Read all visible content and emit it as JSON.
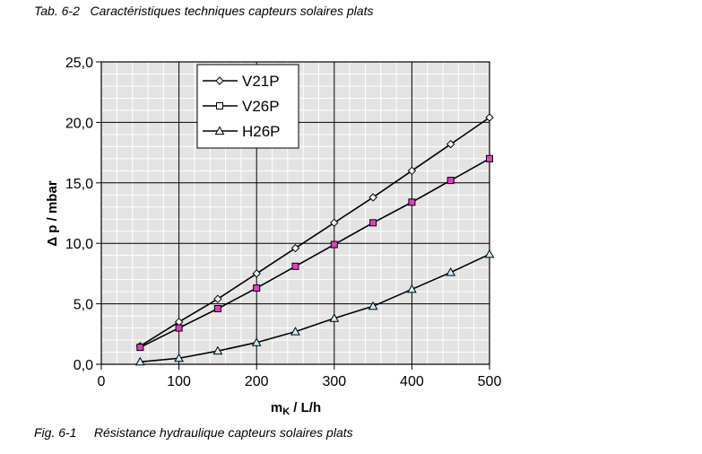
{
  "captions": {
    "table": "Tab. 6-2   Caractéristiques techniques capteurs solaires plats",
    "figure": "Fig. 6-1     Résistance hydraulique capteurs solaires plats"
  },
  "chart_data": {
    "type": "line",
    "title": "",
    "xlabel": "mK / L/h",
    "xlabel_main": "m",
    "xlabel_sub": "K",
    "xlabel_unit": " / L/h",
    "ylabel": "Δ p / mbar",
    "xlim": [
      0,
      500
    ],
    "ylim": [
      0,
      25
    ],
    "x_ticks": [
      0,
      100,
      200,
      300,
      400,
      500
    ],
    "x_tick_labels": [
      "0",
      "100",
      "200",
      "300",
      "400",
      "500"
    ],
    "y_ticks": [
      0,
      5,
      10,
      15,
      20,
      25
    ],
    "y_tick_labels": [
      "0,0",
      "5,0",
      "10,0",
      "15,0",
      "20,0",
      "25,0"
    ],
    "grid": true,
    "legend_position": "top-left",
    "series": [
      {
        "name": "V21P",
        "marker": "diamond",
        "marker_fill": "#ffffff",
        "x": [
          50,
          100,
          150,
          200,
          250,
          300,
          350,
          400,
          450,
          500
        ],
        "values": [
          1.5,
          3.5,
          5.4,
          7.5,
          9.6,
          11.7,
          13.8,
          16.0,
          18.2,
          20.4
        ]
      },
      {
        "name": "V26P",
        "marker": "square",
        "marker_fill": "#e040c0",
        "x": [
          50,
          100,
          150,
          200,
          250,
          300,
          350,
          400,
          450,
          500
        ],
        "values": [
          1.4,
          3.0,
          4.6,
          6.3,
          8.1,
          9.9,
          11.7,
          13.4,
          15.2,
          17.0
        ]
      },
      {
        "name": "H26P",
        "marker": "triangle",
        "marker_fill": "#c8f0ff",
        "x": [
          50,
          100,
          150,
          200,
          250,
          300,
          350,
          400,
          450,
          500
        ],
        "values": [
          0.2,
          0.5,
          1.1,
          1.8,
          2.7,
          3.8,
          4.8,
          6.2,
          7.6,
          9.1
        ]
      }
    ]
  }
}
